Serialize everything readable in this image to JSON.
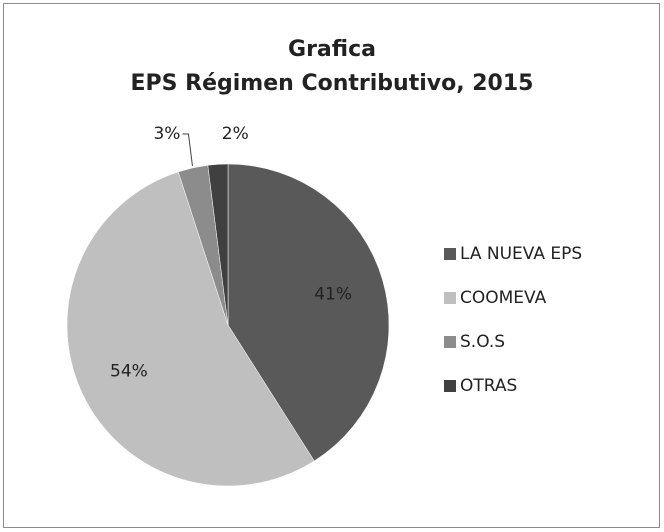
{
  "chart_data": {
    "type": "pie",
    "title": [
      "Grafica",
      "EPS Régimen Contributivo, 2015"
    ],
    "categories": [
      "LA NUEVA EPS",
      "COOMEVA",
      "S.O.S",
      "OTRAS"
    ],
    "values": [
      41,
      54,
      3,
      2
    ],
    "value_labels": [
      "41%",
      "54%",
      "3%",
      "2%"
    ],
    "colors": [
      "#595959",
      "#bfbfbf",
      "#8c8c8c",
      "#404040"
    ],
    "legend": "right"
  }
}
